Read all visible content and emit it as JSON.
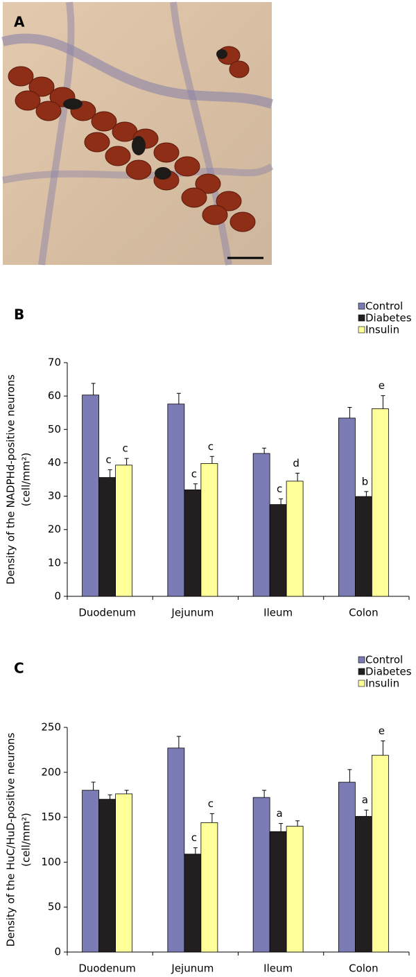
{
  "panel_labels": [
    "A",
    "B",
    "C"
  ],
  "chart_data": [
    {
      "type": "bar",
      "y_label": "Density of the NADPHd-positive neurons",
      "y_label_unit": "(cell/mm²)",
      "categories": [
        "Duodenum",
        "Jejunum",
        "Ileum",
        "Colon"
      ],
      "ylim": [
        0,
        70
      ],
      "yticks": [
        0,
        10,
        20,
        30,
        40,
        50,
        60,
        70
      ],
      "series": [
        {
          "name": "Control",
          "color": "#7b7bb5",
          "values": [
            60.3,
            57.6,
            42.8,
            53.4
          ],
          "errors": [
            3.5,
            3.2,
            1.6,
            3.2
          ],
          "annotations": [
            null,
            null,
            null,
            null
          ]
        },
        {
          "name": "Diabetes",
          "color": "#231f20",
          "values": [
            35.6,
            31.9,
            27.5,
            29.9
          ],
          "errors": [
            2.3,
            1.8,
            1.7,
            1.5
          ],
          "annotations": [
            "c",
            "c",
            "c",
            "b"
          ]
        },
        {
          "name": "Insulin",
          "color": "#ffff99",
          "values": [
            39.3,
            39.8,
            34.5,
            56.2
          ],
          "errors": [
            2.0,
            2.1,
            2.4,
            3.9
          ],
          "annotations": [
            "c",
            "c",
            "d",
            "e"
          ]
        }
      ],
      "legend": "top-right"
    },
    {
      "type": "bar",
      "y_label": "Density of the HuC/HuD-positive neurons",
      "y_label_unit": "(cell/mm²)",
      "categories": [
        "Duodenum",
        "Jejunum",
        "Ileum",
        "Colon"
      ],
      "ylim": [
        0,
        250
      ],
      "yticks": [
        0,
        50,
        100,
        150,
        200,
        250
      ],
      "series": [
        {
          "name": "Control",
          "color": "#7b7bb5",
          "values": [
            180,
            227,
            172,
            189
          ],
          "errors": [
            9,
            13,
            8,
            14
          ],
          "annotations": [
            null,
            null,
            null,
            null
          ]
        },
        {
          "name": "Diabetes",
          "color": "#231f20",
          "values": [
            170,
            109,
            134,
            151
          ],
          "errors": [
            5,
            7,
            9,
            7
          ],
          "annotations": [
            null,
            "c",
            "a",
            "a"
          ]
        },
        {
          "name": "Insulin",
          "color": "#ffff99",
          "values": [
            176,
            144,
            140,
            219
          ],
          "errors": [
            4,
            10,
            6,
            16
          ],
          "annotations": [
            null,
            "c",
            null,
            "e"
          ]
        }
      ],
      "legend": "top-right"
    }
  ]
}
